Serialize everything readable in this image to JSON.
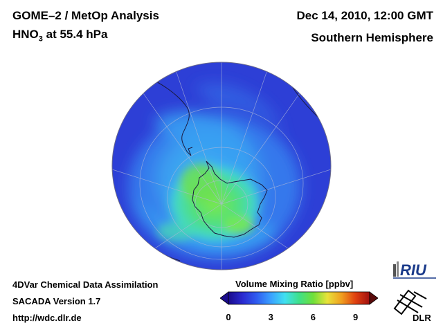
{
  "header": {
    "title_line1": "GOME–2 / MetOp Analysis",
    "species_main": "HNO",
    "species_subscript": "3",
    "species_rest": " at 55.4 hPa",
    "date": "Dec 14, 2010, 12:00 GMT",
    "region": "Southern Hemisphere"
  },
  "footer": {
    "line1": "4DVar Chemical Data Assimilation",
    "line2": "SACADA Version 1.7",
    "line3": "http://wdc.dlr.de"
  },
  "colorbar": {
    "title": "Volume Mixing Ratio [ppbv]",
    "ticks": [
      "0",
      "3",
      "6",
      "9"
    ],
    "range": [
      0,
      10
    ],
    "tick_values": [
      0,
      3,
      6,
      9
    ],
    "colors": [
      "#1a0b8c",
      "#2a2ad0",
      "#2f5cf0",
      "#3aa0ff",
      "#40e0f0",
      "#3fe08a",
      "#6fe03a",
      "#e8e23a",
      "#f0a020",
      "#e04010",
      "#a01010"
    ]
  },
  "map": {
    "projection": "orthographic",
    "hemisphere": "south",
    "background_color": "#2d3fd6",
    "high_color": "#52e07a",
    "mid_color": "#3ec8f0"
  },
  "logos": {
    "riu_text": "RIU",
    "dlr_text": "DLR"
  }
}
